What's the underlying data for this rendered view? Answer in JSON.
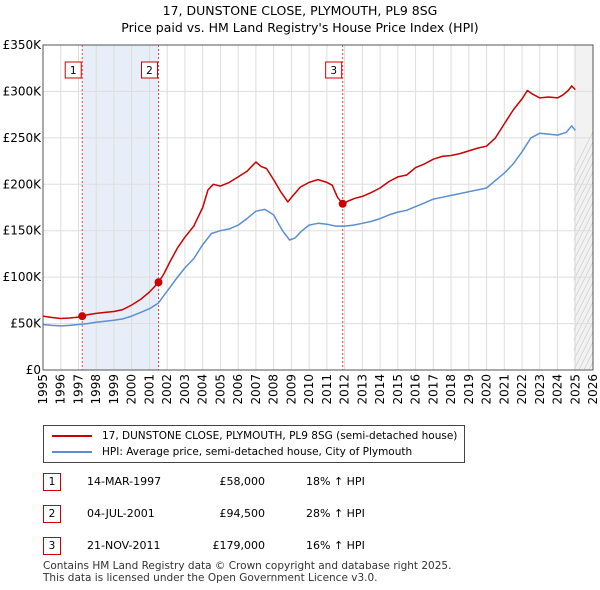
{
  "title": {
    "line1": "17, DUNSTONE CLOSE, PLYMOUTH, PL9 8SG",
    "line2": "Price paid vs. HM Land Registry's House Price Index (HPI)"
  },
  "chart_data": {
    "type": "line",
    "title": "17, DUNSTONE CLOSE, PLYMOUTH, PL9 8SG — Price paid vs. HM Land Registry's House Price Index (HPI)",
    "xlim": [
      1995,
      2026
    ],
    "ylim": [
      0,
      350000
    ],
    "x_ticks": [
      "1995",
      "1996",
      "1997",
      "1998",
      "1999",
      "2000",
      "2001",
      "2002",
      "2003",
      "2004",
      "2005",
      "2006",
      "2007",
      "2008",
      "2009",
      "2010",
      "2011",
      "2012",
      "2013",
      "2014",
      "2015",
      "2016",
      "2017",
      "2018",
      "2019",
      "2020",
      "2021",
      "2022",
      "2023",
      "2024",
      "2025",
      "2026"
    ],
    "y_ticks": [
      {
        "value": 0,
        "label": "£0"
      },
      {
        "value": 50000,
        "label": "£50K"
      },
      {
        "value": 100000,
        "label": "£100K"
      },
      {
        "value": 150000,
        "label": "£150K"
      },
      {
        "value": 200000,
        "label": "£200K"
      },
      {
        "value": 250000,
        "label": "£250K"
      },
      {
        "value": 300000,
        "label": "£300K"
      },
      {
        "value": 350000,
        "label": "£350K"
      }
    ],
    "grid": true,
    "series": [
      {
        "name": "17, DUNSTONE CLOSE, PLYMOUTH, PL9 8SG (semi-detached house)",
        "color": "#cc0000",
        "x": [
          1995.0,
          1995.5,
          1996.0,
          1996.5,
          1997.0,
          1997.21,
          1997.5,
          1998.0,
          1998.5,
          1999.0,
          1999.5,
          2000.0,
          2000.5,
          2001.0,
          2001.3,
          2001.51,
          2001.8,
          2002.2,
          2002.6,
          2003.0,
          2003.5,
          2004.0,
          2004.3,
          2004.6,
          2005.0,
          2005.5,
          2006.0,
          2006.5,
          2007.0,
          2007.3,
          2007.6,
          2008.0,
          2008.4,
          2008.8,
          2009.1,
          2009.5,
          2010.0,
          2010.5,
          2011.0,
          2011.3,
          2011.6,
          2011.89,
          2012.2,
          2012.6,
          2013.0,
          2013.5,
          2014.0,
          2014.5,
          2015.0,
          2015.5,
          2016.0,
          2016.5,
          2017.0,
          2017.5,
          2018.0,
          2018.5,
          2019.0,
          2019.5,
          2020.0,
          2020.5,
          2021.0,
          2021.5,
          2022.0,
          2022.3,
          2022.6,
          2023.0,
          2023.5,
          2024.0,
          2024.3,
          2024.6,
          2024.8,
          2025.0
        ],
        "values": [
          58000,
          56500,
          55500,
          56000,
          57000,
          58000,
          59500,
          61000,
          62000,
          63000,
          65000,
          70000,
          76000,
          84000,
          90000,
          94500,
          103000,
          118000,
          132000,
          143000,
          155000,
          175000,
          194000,
          200000,
          198000,
          202000,
          208000,
          214000,
          224000,
          219000,
          217000,
          205000,
          192000,
          181000,
          188000,
          197000,
          202000,
          205000,
          202000,
          199000,
          186000,
          179000,
          182000,
          185000,
          187000,
          191000,
          196000,
          203000,
          208000,
          210000,
          218000,
          222000,
          227000,
          230000,
          231000,
          233000,
          236000,
          239000,
          241000,
          250000,
          265000,
          280000,
          292000,
          301000,
          297000,
          293000,
          294000,
          293000,
          296000,
          301000,
          306000,
          302000
        ]
      },
      {
        "name": "HPI: Average price, semi-detached house, City of Plymouth",
        "color": "#5b8fd1",
        "x": [
          1995.0,
          1995.5,
          1996.0,
          1996.5,
          1997.0,
          1997.5,
          1998.0,
          1998.5,
          1999.0,
          1999.5,
          2000.0,
          2000.5,
          2001.0,
          2001.5,
          2002.0,
          2002.5,
          2003.0,
          2003.5,
          2004.0,
          2004.5,
          2005.0,
          2005.5,
          2006.0,
          2006.5,
          2007.0,
          2007.5,
          2008.0,
          2008.5,
          2008.9,
          2009.2,
          2009.6,
          2010.0,
          2010.5,
          2011.0,
          2011.5,
          2012.0,
          2012.5,
          2013.0,
          2013.5,
          2014.0,
          2014.5,
          2015.0,
          2015.5,
          2016.0,
          2016.5,
          2017.0,
          2017.5,
          2018.0,
          2018.5,
          2019.0,
          2019.5,
          2020.0,
          2020.5,
          2021.0,
          2021.5,
          2022.0,
          2022.5,
          2023.0,
          2023.5,
          2024.0,
          2024.5,
          2024.8,
          2025.0
        ],
        "values": [
          49000,
          48000,
          47500,
          48000,
          49000,
          50000,
          51500,
          52500,
          53500,
          55000,
          58000,
          62000,
          66000,
          72000,
          85000,
          98000,
          110000,
          120000,
          135000,
          147000,
          150000,
          152000,
          156000,
          163000,
          171000,
          173000,
          167000,
          150000,
          140000,
          142000,
          150000,
          156000,
          158000,
          157000,
          155000,
          155000,
          156000,
          158000,
          160000,
          163000,
          167000,
          170000,
          172000,
          176000,
          180000,
          184000,
          186000,
          188000,
          190000,
          192000,
          194000,
          196000,
          204000,
          212000,
          222000,
          235000,
          250000,
          255000,
          254000,
          253000,
          256000,
          263000,
          258000
        ]
      }
    ],
    "sales": [
      {
        "marker": "1",
        "x": 1997.21,
        "value": 58000
      },
      {
        "marker": "2",
        "x": 2001.51,
        "value": 94500
      },
      {
        "marker": "3",
        "x": 2011.89,
        "value": 179000
      }
    ],
    "shaded_periods": [
      {
        "from": 1997.21,
        "to": 2001.51
      },
      {
        "from": 2024.92,
        "to": 2026
      }
    ],
    "legend_position": "below"
  },
  "legend": {
    "property_label": "17, DUNSTONE CLOSE, PLYMOUTH, PL9 8SG (semi-detached house)",
    "hpi_label": "HPI: Average price, semi-detached house, City of Plymouth"
  },
  "sales_table": [
    {
      "num": "1",
      "date": "14-MAR-1997",
      "price": "£58,000",
      "hpi": "18% ↑ HPI"
    },
    {
      "num": "2",
      "date": "04-JUL-2001",
      "price": "£94,500",
      "hpi": "28% ↑ HPI"
    },
    {
      "num": "3",
      "date": "21-NOV-2011",
      "price": "£179,000",
      "hpi": "16% ↑ HPI"
    }
  ],
  "footer": {
    "line1": "Contains HM Land Registry data © Crown copyright and database right 2025.",
    "line2": "This data is licensed under the Open Government Licence v3.0."
  },
  "colors": {
    "property": "#cc0000",
    "hpi": "#5b8fd1",
    "shade": "#e8eef8",
    "grid": "#dddddd"
  }
}
